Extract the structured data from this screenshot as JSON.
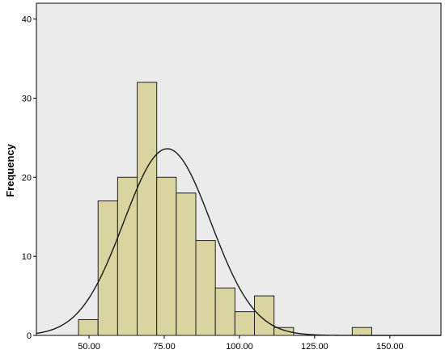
{
  "chart_data": {
    "type": "bar",
    "subtype": "histogram",
    "title": "",
    "xlabel": "",
    "ylabel": "Frequency",
    "xlim": [
      32.5,
      167
    ],
    "ylim": [
      0,
      42
    ],
    "x_ticks": [
      50,
      75,
      100,
      125,
      150
    ],
    "x_tick_labels": [
      "50.00",
      "75.00",
      "100.00",
      "125.00",
      "150.00"
    ],
    "y_ticks": [
      0,
      10,
      20,
      30,
      40
    ],
    "y_tick_labels": [
      "0",
      "10",
      "20",
      "30",
      "40"
    ],
    "bin_width": 6.5,
    "bins": [
      {
        "start": 46.5,
        "end": 53.0,
        "count": 2
      },
      {
        "start": 53.0,
        "end": 59.5,
        "count": 17
      },
      {
        "start": 59.5,
        "end": 66.0,
        "count": 20
      },
      {
        "start": 66.0,
        "end": 72.5,
        "count": 32
      },
      {
        "start": 72.5,
        "end": 79.0,
        "count": 20
      },
      {
        "start": 79.0,
        "end": 85.5,
        "count": 18
      },
      {
        "start": 85.5,
        "end": 92.0,
        "count": 12
      },
      {
        "start": 92.0,
        "end": 98.5,
        "count": 6
      },
      {
        "start": 98.5,
        "end": 105.0,
        "count": 3
      },
      {
        "start": 105.0,
        "end": 111.5,
        "count": 5
      },
      {
        "start": 111.5,
        "end": 118.0,
        "count": 1
      },
      {
        "start": 118.0,
        "end": 124.5,
        "count": 0
      },
      {
        "start": 124.5,
        "end": 131.0,
        "count": 0
      },
      {
        "start": 131.0,
        "end": 137.5,
        "count": 0
      },
      {
        "start": 137.5,
        "end": 144.0,
        "count": 1
      }
    ],
    "normal_curve": {
      "mean": 76,
      "sd": 14.5,
      "peak": 23.6
    },
    "grid": false,
    "legend": "none",
    "colors": {
      "plot_background": "#ebebeb",
      "bar_fill": "#d9d4a0",
      "bar_stroke": "#222222",
      "curve": "#1a1a1a",
      "axis": "#000000"
    }
  }
}
